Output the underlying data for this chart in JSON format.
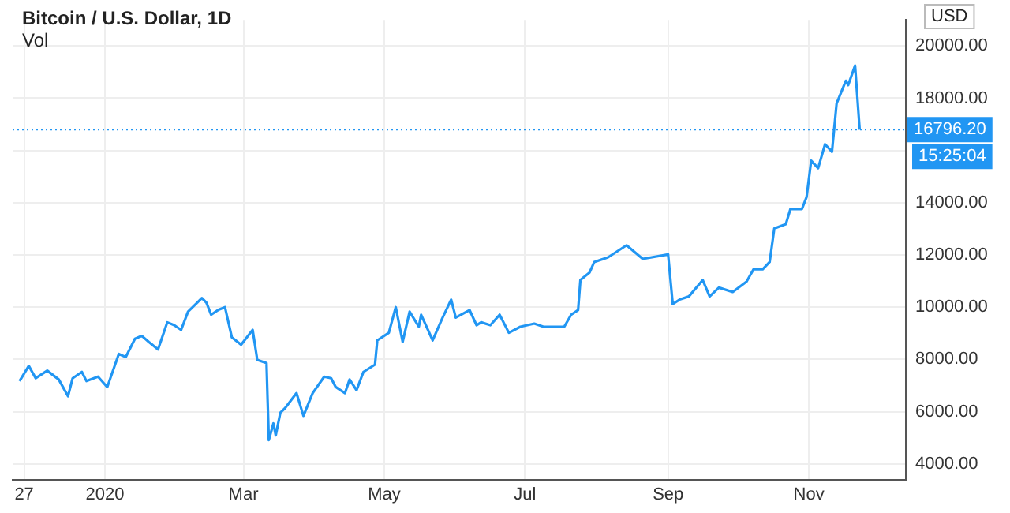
{
  "chart_data": {
    "type": "line",
    "title": "Bitcoin / U.S. Dollar, 1D",
    "annotations": [
      "Vol",
      "USD",
      "15:25:04"
    ],
    "x": [
      "2019-11-25",
      "2019-11-29",
      "2019-12-02",
      "2019-12-07",
      "2019-12-12",
      "2019-12-16",
      "2019-12-18",
      "2019-12-22",
      "2019-12-24",
      "2019-12-29",
      "2020-01-02",
      "2020-01-07",
      "2020-01-10",
      "2020-01-14",
      "2020-01-17",
      "2020-01-20",
      "2020-01-24",
      "2020-01-28",
      "2020-01-31",
      "2020-02-03",
      "2020-02-06",
      "2020-02-12",
      "2020-02-14",
      "2020-02-16",
      "2020-02-19",
      "2020-02-22",
      "2020-02-25",
      "2020-02-29",
      "2020-03-05",
      "2020-03-07",
      "2020-03-11",
      "2020-03-12",
      "2020-03-14",
      "2020-03-15",
      "2020-03-17",
      "2020-03-19",
      "2020-03-24",
      "2020-03-27",
      "2020-03-31",
      "2020-04-05",
      "2020-04-08",
      "2020-04-10",
      "2020-04-14",
      "2020-04-16",
      "2020-04-19",
      "2020-04-22",
      "2020-04-27",
      "2020-04-28",
      "2020-05-03",
      "2020-05-06",
      "2020-05-09",
      "2020-05-12",
      "2020-05-16",
      "2020-05-17",
      "2020-05-22",
      "2020-05-26",
      "2020-05-30",
      "2020-06-01",
      "2020-06-07",
      "2020-06-10",
      "2020-06-12",
      "2020-06-16",
      "2020-06-20",
      "2020-06-24",
      "2020-06-29",
      "2020-07-05",
      "2020-07-09",
      "2020-07-18",
      "2020-07-21",
      "2020-07-24",
      "2020-07-25",
      "2020-07-29",
      "2020-07-31",
      "2020-08-06",
      "2020-08-14",
      "2020-08-21",
      "2020-09-01",
      "2020-09-03",
      "2020-09-06",
      "2020-09-10",
      "2020-09-16",
      "2020-09-19",
      "2020-09-23",
      "2020-09-29",
      "2020-10-05",
      "2020-10-08",
      "2020-10-12",
      "2020-10-15",
      "2020-10-17",
      "2020-10-22",
      "2020-10-24",
      "2020-10-29",
      "2020-10-31",
      "2020-11-02",
      "2020-11-05",
      "2020-11-08",
      "2020-11-11",
      "2020-11-13",
      "2020-11-17",
      "2020-11-18",
      "2020-11-21",
      "2020-11-23"
    ],
    "series": [
      {
        "color": "#2196f3",
        "values": [
          7170,
          7750,
          7280,
          7570,
          7230,
          6590,
          7280,
          7520,
          7170,
          7340,
          6940,
          8210,
          8090,
          8790,
          8900,
          8670,
          8380,
          9420,
          9310,
          9130,
          9830,
          10350,
          10170,
          9710,
          9890,
          10000,
          8840,
          8560,
          9130,
          7980,
          7860,
          4910,
          5550,
          5090,
          5960,
          6130,
          6710,
          5840,
          6710,
          7340,
          7280,
          6940,
          6710,
          7230,
          6820,
          7520,
          7800,
          8730,
          9020,
          10000,
          8670,
          9830,
          9250,
          9710,
          8730,
          9540,
          10290,
          9600,
          9890,
          9310,
          9420,
          9310,
          9710,
          9020,
          9250,
          9370,
          9250,
          9250,
          9710,
          9890,
          11040,
          11330,
          11730,
          11910,
          12370,
          11850,
          12020,
          10120,
          10290,
          10410,
          11040,
          10410,
          10750,
          10580,
          10980,
          11450,
          11450,
          11730,
          13010,
          13180,
          13760,
          13760,
          14220,
          15610,
          15320,
          16240,
          15950,
          17800,
          18670,
          18500,
          19250,
          16796.2
        ]
      }
    ],
    "xlim": [
      "2019-11-22",
      "2020-12-13"
    ],
    "xticks": [
      {
        "value": "2019-11-27",
        "label": "27"
      },
      {
        "value": "2020-01-01",
        "label": "2020"
      },
      {
        "value": "2020-03-01",
        "label": "Mar"
      },
      {
        "value": "2020-05-01",
        "label": "May"
      },
      {
        "value": "2020-07-01",
        "label": "Jul"
      },
      {
        "value": "2020-09-01",
        "label": "Sep"
      },
      {
        "value": "2020-11-01",
        "label": "Nov"
      }
    ],
    "ylim": [
      3400,
      21000
    ],
    "yticks": [
      {
        "value": 4000,
        "label": "4000.00"
      },
      {
        "value": 6000,
        "label": "6000.00"
      },
      {
        "value": 8000,
        "label": "8000.00"
      },
      {
        "value": 10000,
        "label": "10000.00"
      },
      {
        "value": 12000,
        "label": "12000.00"
      },
      {
        "value": 14000,
        "label": "14000.00"
      },
      {
        "value": 16000,
        "label": null
      },
      {
        "value": 18000,
        "label": "18000.00"
      },
      {
        "value": 20000,
        "label": "20000.00"
      }
    ],
    "ref_lines": [
      {
        "axis": "y",
        "value": 16796.2,
        "label": "16796.20",
        "color": "#2196f3",
        "line_style": "dotted"
      }
    ],
    "grid": true,
    "legend": false,
    "marker": "none",
    "line_style": "solid"
  }
}
